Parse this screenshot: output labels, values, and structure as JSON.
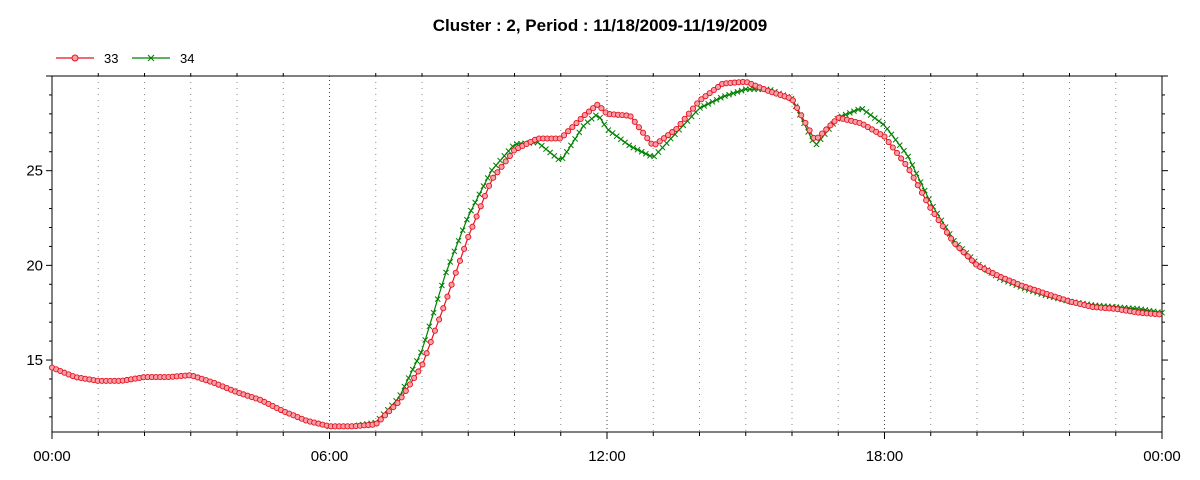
{
  "chart_data": {
    "type": "line",
    "title": "Cluster : 2, Period : 11/18/2009-11/19/2009",
    "xlabel": "",
    "ylabel": "",
    "x_ticks": [
      "00:00",
      "06:00",
      "12:00",
      "18:00",
      "00:00"
    ],
    "x_range_hours": [
      0,
      24
    ],
    "y_ticks": [
      15,
      20,
      25
    ],
    "ylim": [
      11.2,
      30.0
    ],
    "grid": "vertical dotted lines only",
    "legend_placement": "top-left",
    "series": [
      {
        "name": "33",
        "color": "#e8111f",
        "marker": "circle",
        "marker_fill": "#f5a0a8",
        "x": [
          0,
          0.5,
          1,
          1.5,
          2,
          2.5,
          3,
          3.5,
          4,
          4.5,
          5,
          5.5,
          6,
          6.5,
          7,
          7.5,
          8,
          8.5,
          9,
          9.5,
          10,
          10.5,
          11,
          11.5,
          11.8,
          12,
          12.5,
          13,
          13.5,
          14,
          14.5,
          15,
          15.5,
          16,
          16.5,
          17,
          17.5,
          18,
          18.5,
          19,
          19.5,
          20,
          20.5,
          21,
          21.5,
          22,
          22.5,
          23,
          23.5,
          24
        ],
        "values": [
          14.6,
          14.1,
          13.9,
          13.9,
          14.1,
          14.1,
          14.2,
          13.8,
          13.3,
          12.9,
          12.3,
          11.8,
          11.5,
          11.5,
          11.6,
          12.8,
          14.7,
          18.0,
          21.5,
          24.5,
          26.1,
          26.7,
          26.7,
          27.9,
          28.5,
          28.0,
          27.9,
          26.3,
          27.2,
          28.7,
          29.6,
          29.7,
          29.2,
          28.8,
          26.6,
          27.8,
          27.5,
          26.8,
          25.2,
          23.0,
          21.2,
          20.0,
          19.4,
          18.9,
          18.5,
          18.1,
          17.8,
          17.7,
          17.5,
          17.4
        ]
      },
      {
        "name": "34",
        "color": "#008000",
        "marker": "x",
        "marker_fill": "#008000",
        "x": [
          6,
          6.5,
          7,
          7.5,
          8,
          8.5,
          9,
          9.5,
          10,
          10.5,
          11,
          11.5,
          11.8,
          12,
          12.5,
          13,
          13.5,
          14,
          14.5,
          15,
          15.5,
          16,
          16.5,
          17,
          17.5,
          18,
          18.5,
          19,
          19.5,
          20,
          20.5,
          21,
          21.5,
          22,
          22.5,
          23,
          23.5,
          24
        ],
        "values": [
          11.5,
          11.5,
          11.7,
          13.0,
          15.5,
          19.5,
          22.6,
          25.0,
          26.4,
          26.5,
          25.5,
          27.4,
          28.0,
          27.2,
          26.3,
          25.7,
          27.0,
          28.3,
          28.9,
          29.3,
          29.3,
          28.8,
          26.3,
          27.8,
          28.3,
          27.4,
          25.8,
          23.3,
          21.3,
          20.1,
          19.3,
          18.8,
          18.4,
          18.1,
          17.9,
          17.8,
          17.7,
          17.5
        ]
      }
    ]
  }
}
